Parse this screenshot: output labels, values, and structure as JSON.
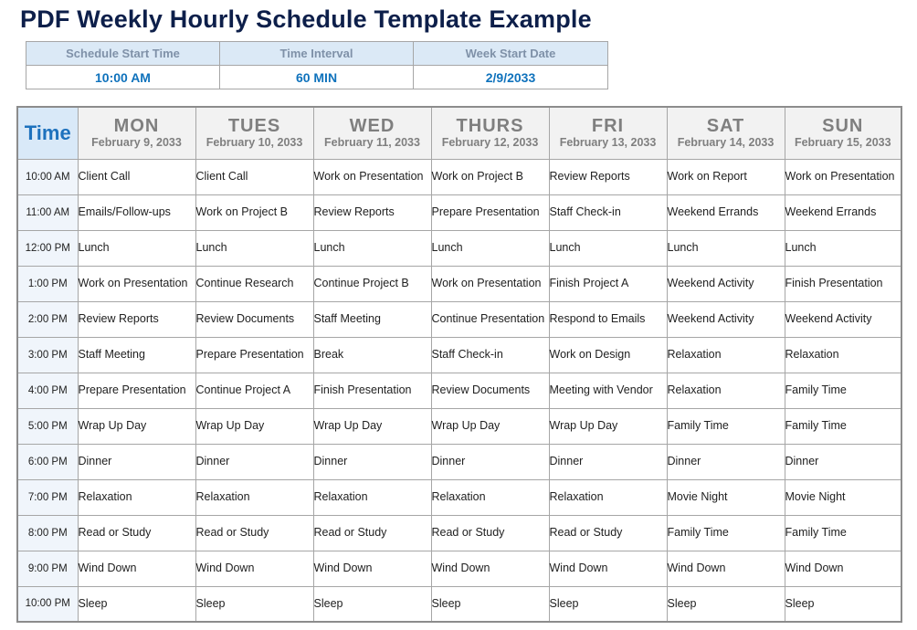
{
  "title": "PDF Weekly Hourly Schedule Template Example",
  "info_table": {
    "headers": [
      "Schedule Start Time",
      "Time Interval",
      "Week Start Date"
    ],
    "values": [
      "10:00 AM",
      "60 MIN",
      "2/9/2033"
    ]
  },
  "schedule": {
    "time_header": "Time",
    "days": [
      {
        "label": "MON",
        "date": "February 9, 2033"
      },
      {
        "label": "TUES",
        "date": "February 10, 2033"
      },
      {
        "label": "WED",
        "date": "February 11, 2033"
      },
      {
        "label": "THURS",
        "date": "February 12, 2033"
      },
      {
        "label": "FRI",
        "date": "February 13, 2033"
      },
      {
        "label": "SAT",
        "date": "February 14, 2033"
      },
      {
        "label": "SUN",
        "date": "February 15, 2033"
      }
    ],
    "rows": [
      {
        "time": "10:00 AM",
        "cells": [
          "Client Call",
          "Client Call",
          "Work on Presentation",
          "Work on Project B",
          "Review Reports",
          "Work on Report",
          "Work on Presentation"
        ]
      },
      {
        "time": "11:00 AM",
        "cells": [
          "Emails/Follow-ups",
          "Work on Project B",
          "Review Reports",
          "Prepare Presentation",
          "Staff Check-in",
          "Weekend Errands",
          "Weekend Errands"
        ]
      },
      {
        "time": "12:00 PM",
        "cells": [
          "Lunch",
          "Lunch",
          "Lunch",
          "Lunch",
          "Lunch",
          "Lunch",
          "Lunch"
        ]
      },
      {
        "time": "1:00 PM",
        "cells": [
          "Work on Presentation",
          "Continue Research",
          "Continue Project B",
          "Work on Presentation",
          "Finish Project A",
          "Weekend Activity",
          "Finish Presentation"
        ]
      },
      {
        "time": "2:00 PM",
        "cells": [
          "Review Reports",
          "Review Documents",
          "Staff Meeting",
          "Continue Presentation",
          "Respond to Emails",
          "Weekend Activity",
          "Weekend Activity"
        ]
      },
      {
        "time": "3:00 PM",
        "cells": [
          "Staff Meeting",
          "Prepare Presentation",
          "Break",
          "Staff Check-in",
          "Work on Design",
          "Relaxation",
          "Relaxation"
        ]
      },
      {
        "time": "4:00 PM",
        "cells": [
          "Prepare Presentation",
          "Continue Project A",
          "Finish Presentation",
          "Review Documents",
          "Meeting with Vendor",
          "Relaxation",
          "Family Time"
        ]
      },
      {
        "time": "5:00 PM",
        "cells": [
          "Wrap Up Day",
          "Wrap Up Day",
          "Wrap Up Day",
          "Wrap Up Day",
          "Wrap Up Day",
          "Family Time",
          "Family Time"
        ]
      },
      {
        "time": "6:00 PM",
        "cells": [
          "Dinner",
          "Dinner",
          "Dinner",
          "Dinner",
          "Dinner",
          "Dinner",
          "Dinner"
        ]
      },
      {
        "time": "7:00 PM",
        "cells": [
          "Relaxation",
          "Relaxation",
          "Relaxation",
          "Relaxation",
          "Relaxation",
          "Movie Night",
          "Movie Night"
        ]
      },
      {
        "time": "8:00 PM",
        "cells": [
          "Read or Study",
          "Read or Study",
          "Read or Study",
          "Read or Study",
          "Read or Study",
          "Family Time",
          "Family Time"
        ]
      },
      {
        "time": "9:00 PM",
        "cells": [
          "Wind Down",
          "Wind Down",
          "Wind Down",
          "Wind Down",
          "Wind Down",
          "Wind Down",
          "Wind Down"
        ]
      },
      {
        "time": "10:00 PM",
        "cells": [
          "Sleep",
          "Sleep",
          "Sleep",
          "Sleep",
          "Sleep",
          "Sleep",
          "Sleep"
        ]
      }
    ]
  },
  "colors": {
    "title": "#0d1f4a",
    "info_header_bg": "#dbe9f6",
    "info_header_text": "#7f91a8",
    "info_value_text": "#0f72bc",
    "time_header_bg": "#d9e9f8",
    "time_header_text": "#1d71bd",
    "day_header_bg": "#f2f2f2",
    "day_header_text": "#7f7f7f",
    "time_col_bg": "#f0f5fb",
    "cell_text": "#212121",
    "border": "#a6a6a6"
  }
}
